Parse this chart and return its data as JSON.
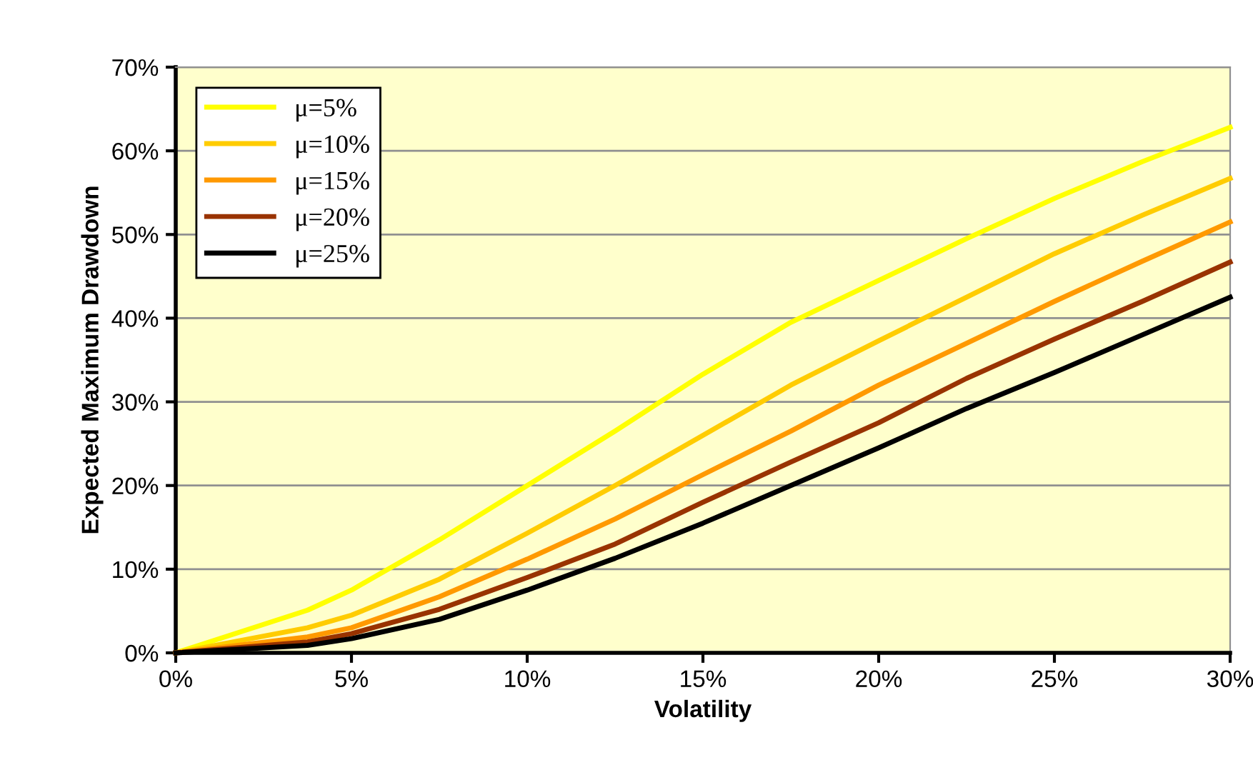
{
  "chart_data": {
    "type": "line",
    "xlabel": "Volatility",
    "ylabel": "Expected Maximum Drawdown",
    "x": [
      0,
      3.75,
      5,
      7.5,
      10,
      12.5,
      15,
      17.5,
      20,
      22.5,
      25,
      27.5,
      30
    ],
    "series": [
      {
        "name": "μ=5%",
        "color": "#ffff00",
        "values": [
          0,
          5.1,
          7.5,
          13.5,
          20,
          26.5,
          33.3,
          39.5,
          44.5,
          49.5,
          54.3,
          58.7,
          62.8
        ]
      },
      {
        "name": "μ=10%",
        "color": "#ffcc00",
        "values": [
          0,
          3,
          4.5,
          8.8,
          14.3,
          20,
          26,
          32,
          37.3,
          42.5,
          47.7,
          52.3,
          56.7
        ]
      },
      {
        "name": "μ=15%",
        "color": "#ff9900",
        "values": [
          0,
          1.9,
          3,
          6.7,
          11.2,
          16,
          21.3,
          26.5,
          32,
          37,
          42,
          46.8,
          51.5
        ]
      },
      {
        "name": "μ=20%",
        "color": "#993300",
        "values": [
          0,
          1.3,
          2.3,
          5.2,
          9,
          13,
          18,
          22.8,
          27.5,
          32.8,
          37.5,
          42,
          46.7
        ]
      },
      {
        "name": "μ=25%",
        "color": "#000000",
        "values": [
          0,
          0.9,
          1.7,
          4,
          7.5,
          11.3,
          15.5,
          20,
          24.5,
          29.2,
          33.5,
          38,
          42.5
        ]
      }
    ],
    "xlim": [
      0,
      30
    ],
    "ylim": [
      0,
      70
    ],
    "xticks": [
      {
        "value": 0,
        "label": "0%"
      },
      {
        "value": 5,
        "label": "5%"
      },
      {
        "value": 10,
        "label": "10%"
      },
      {
        "value": 15,
        "label": "15%"
      },
      {
        "value": 20,
        "label": "20%"
      },
      {
        "value": 25,
        "label": "25%"
      },
      {
        "value": 30,
        "label": "30%"
      }
    ],
    "yticks": [
      {
        "value": 0,
        "label": "0%"
      },
      {
        "value": 10,
        "label": "10%"
      },
      {
        "value": 20,
        "label": "20%"
      },
      {
        "value": 30,
        "label": "30%"
      },
      {
        "value": 40,
        "label": "40%"
      },
      {
        "value": 50,
        "label": "50%"
      },
      {
        "value": 60,
        "label": "60%"
      },
      {
        "value": 70,
        "label": "70%"
      }
    ],
    "grid": "y",
    "legend": "top left",
    "marker": "none",
    "line_style": "solid"
  }
}
